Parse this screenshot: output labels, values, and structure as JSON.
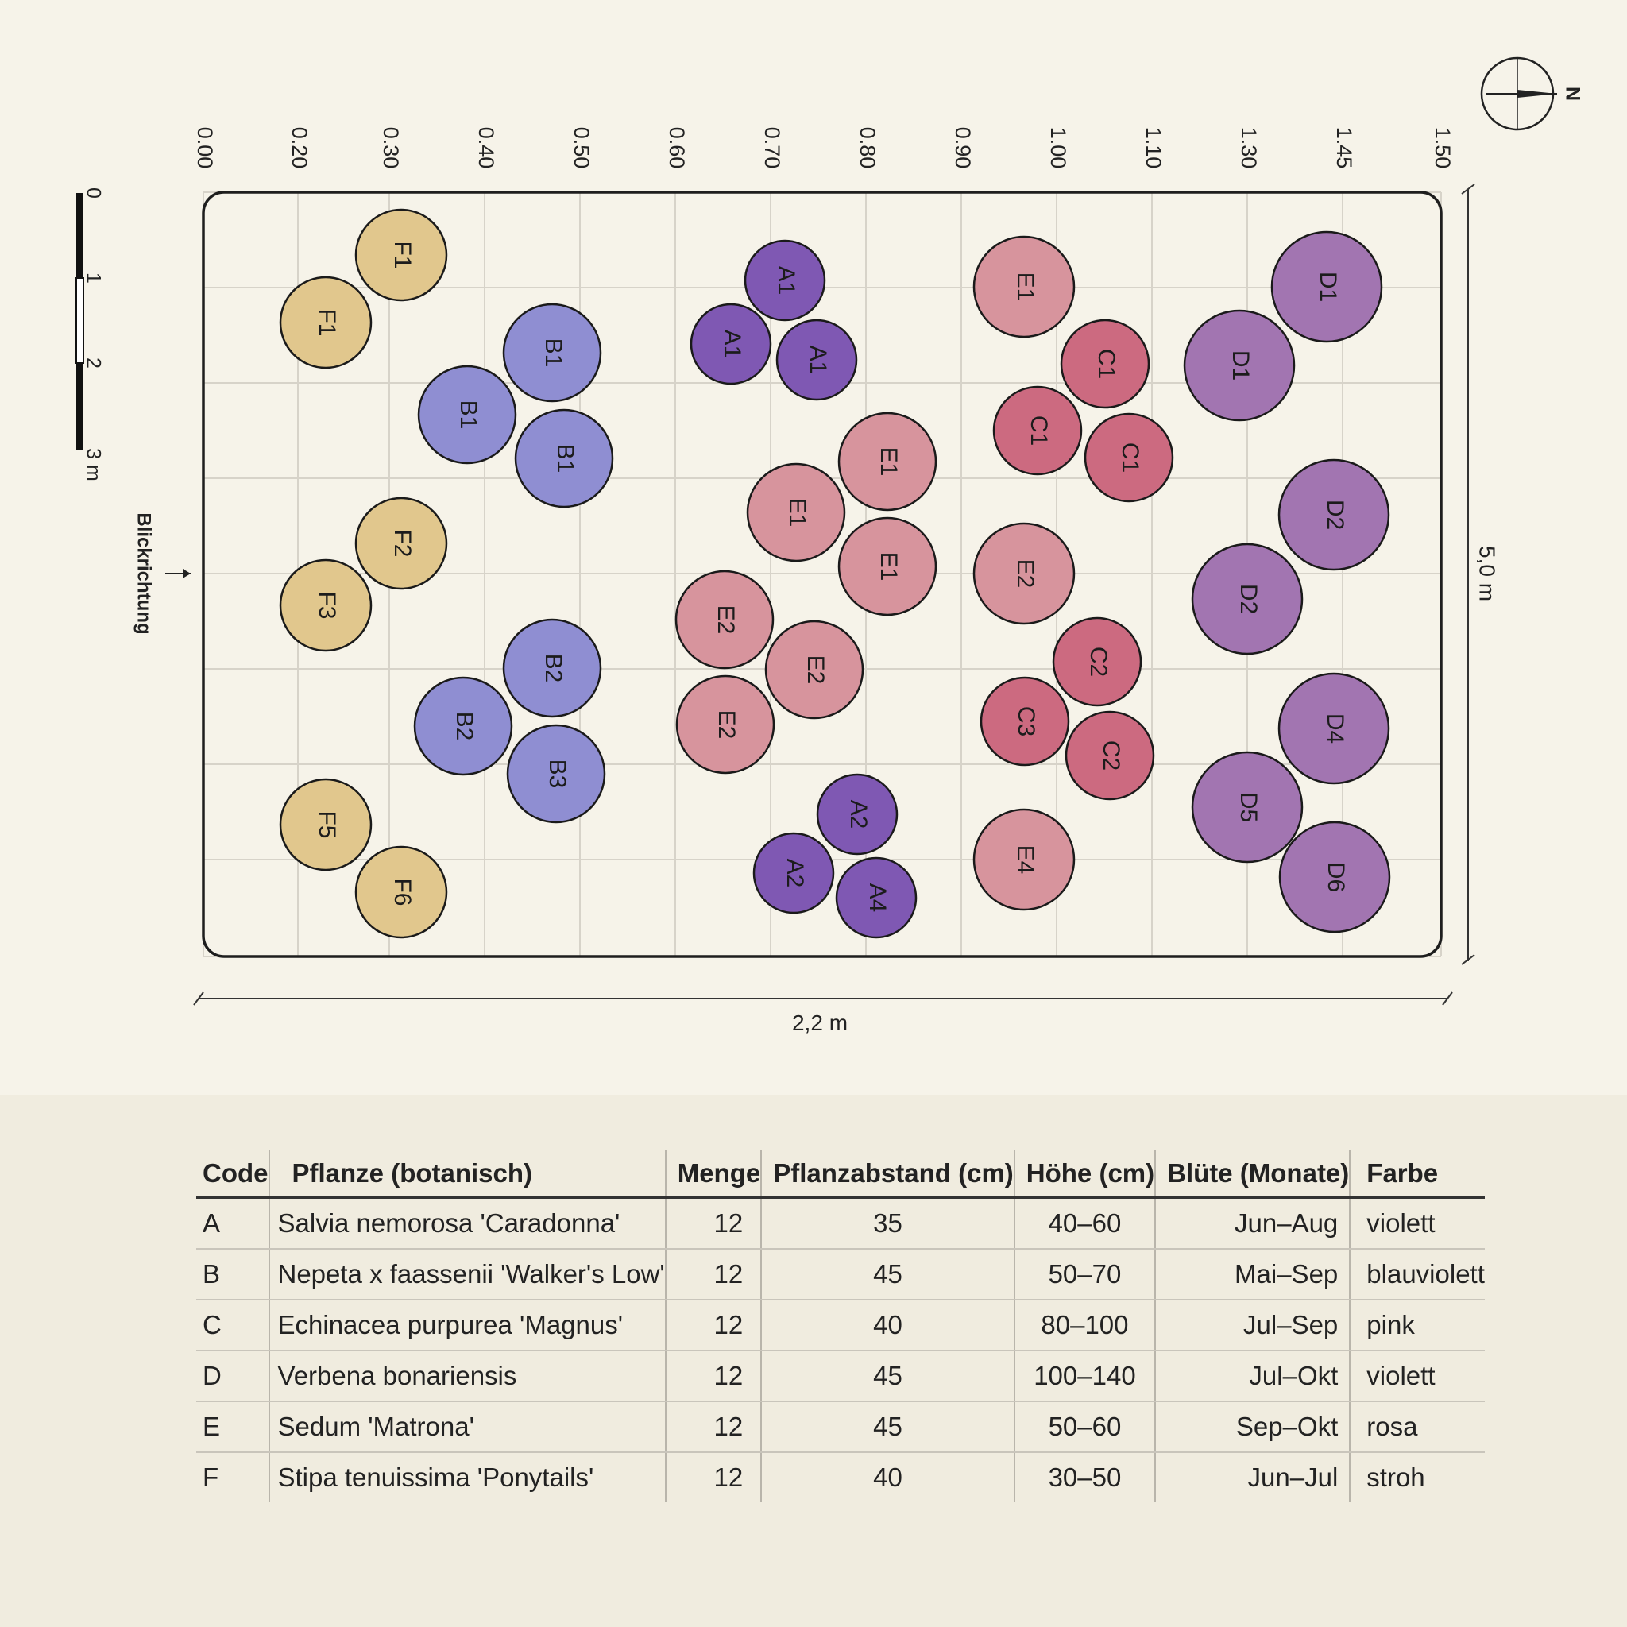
{
  "axis": {
    "tick_labels": [
      "0.00",
      "0.20",
      "0.30",
      "0.40",
      "0.50",
      "0.60",
      "0.70",
      "0.80",
      "0.90",
      "1.00",
      "1.10",
      "1.30",
      "1.45",
      "1.50"
    ]
  },
  "compass": {
    "label": "N"
  },
  "scale_bar": {
    "labels": [
      "0",
      "1",
      "2",
      "3 m"
    ]
  },
  "view_direction": {
    "label": "Blickrichtung"
  },
  "dimensions": {
    "width": "2,2 m",
    "length": "5,0 m"
  },
  "colors": {
    "A": "#7f58b3",
    "B": "#8f8ed2",
    "C": "#cc6a80",
    "D": "#a275b1",
    "E": "#d7949d",
    "F": "#e1c78d",
    "background": "#f6f3e9",
    "panel": "#f0ecdf"
  },
  "plants": [
    {
      "label": "F1",
      "group": "F"
    },
    {
      "label": "F1",
      "group": "F"
    },
    {
      "label": "B1",
      "group": "B"
    },
    {
      "label": "B1",
      "group": "B"
    },
    {
      "label": "B1",
      "group": "B"
    },
    {
      "label": "F2",
      "group": "F"
    },
    {
      "label": "F3",
      "group": "F"
    },
    {
      "label": "B2",
      "group": "B"
    },
    {
      "label": "B2",
      "group": "B"
    },
    {
      "label": "B3",
      "group": "B"
    },
    {
      "label": "F5",
      "group": "F"
    },
    {
      "label": "F6",
      "group": "F"
    },
    {
      "label": "A1",
      "group": "A"
    },
    {
      "label": "A1",
      "group": "A"
    },
    {
      "label": "A1",
      "group": "A"
    },
    {
      "label": "E1",
      "group": "E"
    },
    {
      "label": "E1",
      "group": "E"
    },
    {
      "label": "E1",
      "group": "E"
    },
    {
      "label": "E2",
      "group": "E"
    },
    {
      "label": "E2",
      "group": "E"
    },
    {
      "label": "E2",
      "group": "E"
    },
    {
      "label": "A2",
      "group": "A"
    },
    {
      "label": "A2",
      "group": "A"
    },
    {
      "label": "A4",
      "group": "A"
    },
    {
      "label": "E1",
      "group": "E"
    },
    {
      "label": "C1",
      "group": "C"
    },
    {
      "label": "C1",
      "group": "C"
    },
    {
      "label": "C1",
      "group": "C"
    },
    {
      "label": "E2",
      "group": "E"
    },
    {
      "label": "C2",
      "group": "C"
    },
    {
      "label": "C3",
      "group": "C"
    },
    {
      "label": "C2",
      "group": "C"
    },
    {
      "label": "E4",
      "group": "E"
    },
    {
      "label": "D1",
      "group": "D"
    },
    {
      "label": "D1",
      "group": "D"
    },
    {
      "label": "D2",
      "group": "D"
    },
    {
      "label": "D2",
      "group": "D"
    },
    {
      "label": "D4",
      "group": "D"
    },
    {
      "label": "D5",
      "group": "D"
    },
    {
      "label": "D6",
      "group": "D"
    }
  ],
  "table": {
    "headers": {
      "code": "Code",
      "name": "Pflanze (botanisch)",
      "menge": "Menge",
      "abstand": "Pflanzabstand (cm)",
      "hoehe": "Höhe (cm)",
      "bluete": "Blüte (Monate)",
      "farbe": "Farbe"
    },
    "rows": [
      {
        "code": "A",
        "name": "Salvia nemorosa 'Caradonna'",
        "menge": "12",
        "abstand": "35",
        "hoehe": "40–60",
        "bluete": "Jun–Aug",
        "farbe": "violett"
      },
      {
        "code": "B",
        "name": "Nepeta x faassenii 'Walker's Low'",
        "menge": "12",
        "abstand": "45",
        "hoehe": "50–70",
        "bluete": "Mai–Sep",
        "farbe": "blauviolett"
      },
      {
        "code": "C",
        "name": "Echinacea purpurea 'Magnus'",
        "menge": "12",
        "abstand": "40",
        "hoehe": "80–100",
        "bluete": "Jul–Sep",
        "farbe": "pink"
      },
      {
        "code": "D",
        "name": "Verbena bonariensis",
        "menge": "12",
        "abstand": "45",
        "hoehe": "100–140",
        "bluete": "Jul–Okt",
        "farbe": "violett"
      },
      {
        "code": "E",
        "name": "Sedum 'Matrona'",
        "menge": "12",
        "abstand": "45",
        "hoehe": "50–60",
        "bluete": "Sep–Okt",
        "farbe": "rosa"
      },
      {
        "code": "F",
        "name": "Stipa tenuissima 'Ponytails'",
        "menge": "12",
        "abstand": "40",
        "hoehe": "30–50",
        "bluete": "Jun–Jul",
        "farbe": "stroh"
      }
    ]
  }
}
